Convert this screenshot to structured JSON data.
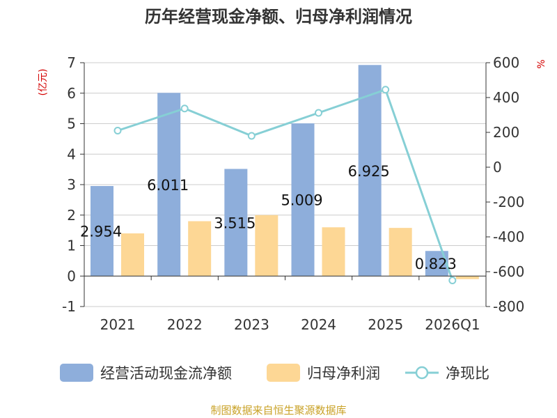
{
  "title": "历年经营现金净额、归母净利润情况",
  "source": "制图数据来自恒生聚源数据库",
  "units": {
    "left": "(亿元)",
    "right": "%"
  },
  "legend": [
    "经营活动现金流净额",
    "归母净利润",
    "净现比"
  ],
  "colors": {
    "bar1": "#8eaedb",
    "bar2": "#fdd795",
    "line": "#86cfd5",
    "grid": "#cccccc",
    "unit": "#d40000",
    "source": "#c9a227"
  },
  "chart_data": {
    "type": "bar",
    "title": "历年经营现金净额、归母净利润情况",
    "categories": [
      "2021",
      "2022",
      "2023",
      "2024",
      "2025",
      "2026Q1"
    ],
    "series": [
      {
        "name": "经营活动现金流净额",
        "type": "bar",
        "axis": "left",
        "values": [
          2.954,
          6.011,
          3.515,
          5.009,
          6.925,
          0.823
        ]
      },
      {
        "name": "归母净利润",
        "type": "bar",
        "axis": "left",
        "values": [
          1.4,
          1.8,
          2.0,
          1.6,
          1.58,
          -0.1
        ]
      },
      {
        "name": "净现比",
        "type": "line",
        "axis": "right",
        "values": [
          210,
          337,
          180,
          312,
          445,
          -650
        ]
      }
    ],
    "data_labels": [
      "2.954",
      "6.011",
      "3.515",
      "5.009",
      "6.925",
      "0.823"
    ],
    "y_left": {
      "min": -1,
      "max": 7,
      "ticks": [
        "-1",
        "0",
        "1",
        "2",
        "3",
        "4",
        "5",
        "6",
        "7"
      ]
    },
    "y_right": {
      "min": -800,
      "max": 600,
      "ticks": [
        "-800",
        "-600",
        "-400",
        "-200",
        "0",
        "200",
        "400",
        "600"
      ]
    },
    "grid": true,
    "legend_position": "bottom"
  }
}
